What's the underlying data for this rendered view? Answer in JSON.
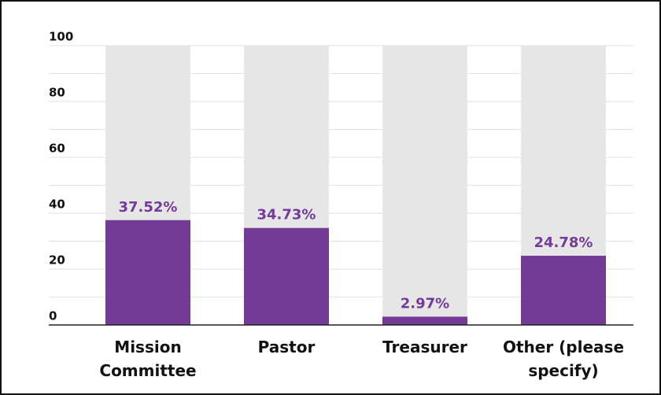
{
  "chart_data": {
    "type": "bar",
    "categories": [
      "Mission Committee",
      "Pastor",
      "Treasurer",
      "Other (please specify)"
    ],
    "values": [
      37.52,
      34.73,
      2.97,
      24.78
    ],
    "value_labels": [
      "37.52%",
      "34.73%",
      "2.97%",
      "24.78%"
    ],
    "color": "#733a96",
    "background_color": "#e6e6e6",
    "ylim": [
      0,
      100
    ],
    "yticks": [
      0,
      20,
      40,
      60,
      80,
      100
    ],
    "yminor": [
      10,
      30,
      50,
      70,
      90
    ],
    "grid": true
  }
}
